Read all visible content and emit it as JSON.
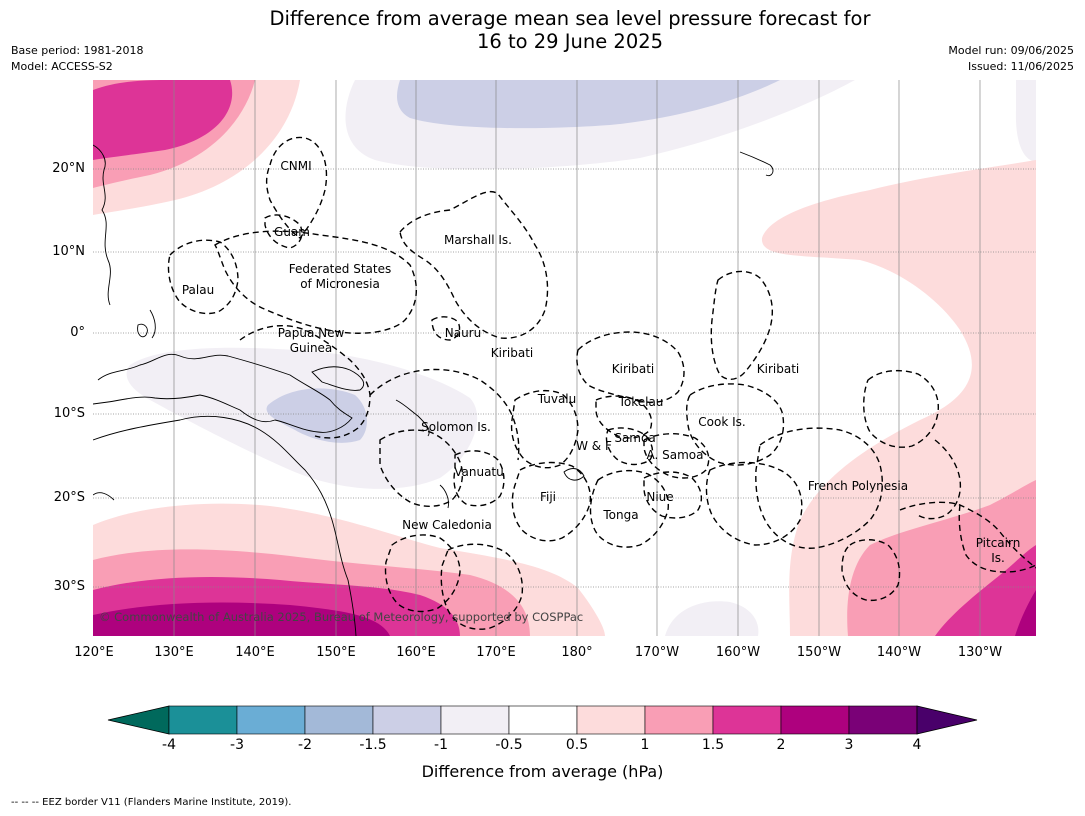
{
  "title_line1": "Difference from average mean sea level pressure forecast for",
  "title_line2": "16 to 29 June 2025",
  "meta_left": [
    "Base period: 1981-2018",
    "Model: ACCESS-S2"
  ],
  "meta_right": [
    "Model run: 09/06/2025",
    "Issued: 11/06/2025"
  ],
  "lat_labels": [
    "20°N",
    "10°N",
    "0°",
    "10°S",
    "20°S",
    "30°S"
  ],
  "lon_labels": [
    "120°E",
    "130°E",
    "140°E",
    "150°E",
    "160°E",
    "170°E",
    "180°",
    "170°W",
    "160°W",
    "150°W",
    "140°W",
    "130°W"
  ],
  "places": [
    {
      "name": "CNMI"
    },
    {
      "name": "Guam"
    },
    {
      "name": "Marshall Is."
    },
    {
      "name": "Federated States"
    },
    {
      "name": "of Micronesia"
    },
    {
      "name": "Palau"
    },
    {
      "name": "Papua New"
    },
    {
      "name": "Guinea"
    },
    {
      "name": "Nauru"
    },
    {
      "name": "Kiribati"
    },
    {
      "name": "Kiribati"
    },
    {
      "name": "Kiribati"
    },
    {
      "name": "Tuvalu"
    },
    {
      "name": "Tokelau"
    },
    {
      "name": "Cook Is."
    },
    {
      "name": "Solomon Is."
    },
    {
      "name": "Samoa"
    },
    {
      "name": "W & F"
    },
    {
      "name": "A. Samoa"
    },
    {
      "name": "Vanuatu"
    },
    {
      "name": "Fiji"
    },
    {
      "name": "Niue"
    },
    {
      "name": "Tonga"
    },
    {
      "name": "New Caledonia"
    },
    {
      "name": "French Polynesia"
    },
    {
      "name": "Pitcairn"
    },
    {
      "name": "Is."
    }
  ],
  "copyright": "© Commonwealth of Australia 2025, Bureau of Meteorology, supported by COSPPac",
  "colorbar": {
    "title": "Difference from average (hPa)",
    "ticks": [
      "-4",
      "-3",
      "-2",
      "-1.5",
      "-1",
      "-0.5",
      "0.5",
      "1",
      "1.5",
      "2",
      "3",
      "4"
    ],
    "colors": [
      "#00695c",
      "#1b9098",
      "#6aadd5",
      "#a3b9d8",
      "#cccfe6",
      "#f2eff5",
      "#ffffff",
      "#fddcdc",
      "#f99eb5",
      "#dd3497",
      "#ae017e",
      "#7a0177",
      "#49006a"
    ]
  },
  "footer": "--  --  -- EEZ border V11 (Flanders Marine Institute, 2019)."
}
